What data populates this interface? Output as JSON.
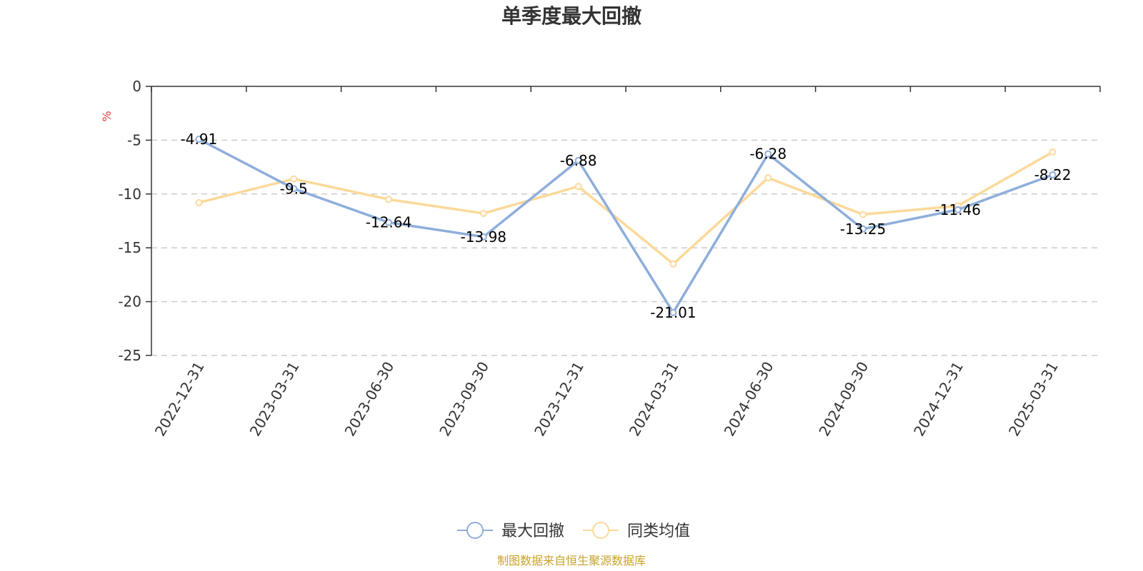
{
  "chart_data": {
    "type": "line",
    "title": "单季度最大回撤",
    "ylabel": "%",
    "xlabel": "",
    "categories": [
      "2022-12-31",
      "2023-03-31",
      "2023-06-30",
      "2023-09-30",
      "2023-12-31",
      "2024-03-31",
      "2024-06-30",
      "2024-09-30",
      "2024-12-31",
      "2025-03-31"
    ],
    "ylim": [
      -25,
      0
    ],
    "yticks": [
      0,
      -5,
      -10,
      -15,
      -20,
      -25
    ],
    "grid": true,
    "legend_position": "bottom",
    "series": [
      {
        "name": "最大回撤",
        "values": [
          -4.91,
          -9.5,
          -12.64,
          -13.98,
          -6.88,
          -21.01,
          -6.28,
          -13.25,
          -11.46,
          -8.22
        ],
        "color": "#8eaedb",
        "show_labels": true
      },
      {
        "name": "同类均值",
        "values": [
          -10.8,
          -8.6,
          -10.5,
          -11.8,
          -9.3,
          -16.5,
          -8.5,
          -11.9,
          -11.1,
          -6.1
        ],
        "color": "#fcd999",
        "show_labels": false
      }
    ],
    "source": "制图数据来自恒生聚源数据库",
    "source_color": "#c9a227",
    "unit_color": "#e03a3a"
  }
}
